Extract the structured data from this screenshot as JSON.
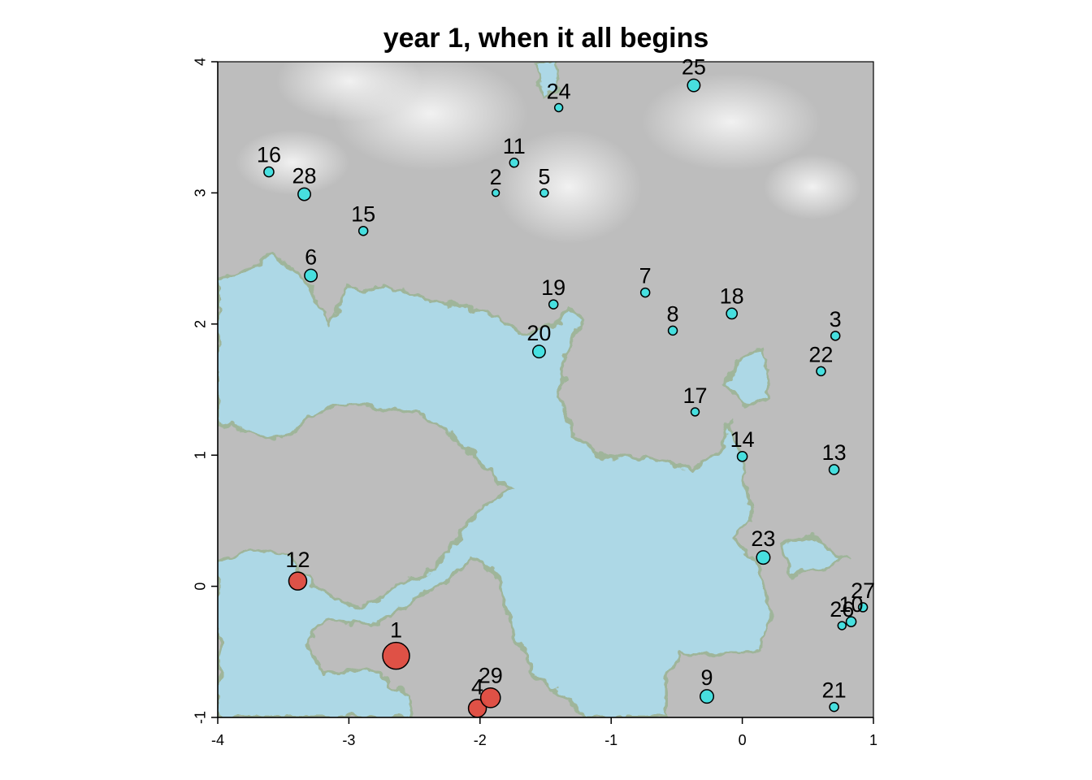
{
  "chart_data": {
    "type": "scatter",
    "title": "year 1, when it all begins",
    "xlabel": "",
    "ylabel": "",
    "xlim": [
      -4,
      1
    ],
    "ylim": [
      -1,
      4
    ],
    "x_ticks": [
      "-4",
      "-3",
      "-2",
      "-1",
      "0",
      "1"
    ],
    "y_ticks": [
      "-1",
      "0",
      "1",
      "2",
      "3",
      "4"
    ],
    "background": {
      "description": "terrain raster: gray elevation with water areas",
      "land_color": "#bdbdbd",
      "highland_color": "#e8e8e8",
      "water_color": "#add8e6",
      "shore_color": "#9fb59a"
    },
    "series": [
      {
        "color": "#e04b3f",
        "points": [
          {
            "label": "1",
            "x": -2.64,
            "y": -0.53,
            "size": 3
          },
          {
            "label": "4",
            "x": -2.02,
            "y": -0.93,
            "size": 2
          },
          {
            "label": "29",
            "x": -1.92,
            "y": -0.85,
            "size": 2.2
          },
          {
            "label": "12",
            "x": -3.39,
            "y": 0.04,
            "size": 2
          }
        ]
      },
      {
        "color": "#40e0e0",
        "points": [
          {
            "label": "2",
            "x": -1.88,
            "y": 3.0,
            "size": 0.8
          },
          {
            "label": "3",
            "x": 0.71,
            "y": 1.91,
            "size": 1
          },
          {
            "label": "5",
            "x": -1.51,
            "y": 3.0,
            "size": 0.9
          },
          {
            "label": "6",
            "x": -3.29,
            "y": 2.37,
            "size": 1.4
          },
          {
            "label": "7",
            "x": -0.74,
            "y": 2.24,
            "size": 1
          },
          {
            "label": "8",
            "x": -0.53,
            "y": 1.95,
            "size": 1
          },
          {
            "label": "9",
            "x": -0.27,
            "y": -0.84,
            "size": 1.5
          },
          {
            "label": "10",
            "x": 0.83,
            "y": -0.27,
            "size": 1.1
          },
          {
            "label": "11",
            "x": -1.74,
            "y": 3.23,
            "size": 1
          },
          {
            "label": "13",
            "x": 0.7,
            "y": 0.89,
            "size": 1.1
          },
          {
            "label": "14",
            "x": 0.0,
            "y": 0.99,
            "size": 1.1
          },
          {
            "label": "15",
            "x": -2.89,
            "y": 2.71,
            "size": 1
          },
          {
            "label": "16",
            "x": -3.61,
            "y": 3.16,
            "size": 1.1
          },
          {
            "label": "17",
            "x": -0.36,
            "y": 1.33,
            "size": 0.9
          },
          {
            "label": "18",
            "x": -0.08,
            "y": 2.08,
            "size": 1.2
          },
          {
            "label": "19",
            "x": -1.44,
            "y": 2.15,
            "size": 1
          },
          {
            "label": "20",
            "x": -1.55,
            "y": 1.79,
            "size": 1.4
          },
          {
            "label": "21",
            "x": 0.7,
            "y": -0.92,
            "size": 1
          },
          {
            "label": "22",
            "x": 0.6,
            "y": 1.64,
            "size": 1
          },
          {
            "label": "23",
            "x": 0.16,
            "y": 0.22,
            "size": 1.5
          },
          {
            "label": "24",
            "x": -1.4,
            "y": 3.65,
            "size": 0.9
          },
          {
            "label": "25",
            "x": -0.37,
            "y": 3.82,
            "size": 1.4
          },
          {
            "label": "26",
            "x": 0.76,
            "y": -0.3,
            "size": 0.9
          },
          {
            "label": "27",
            "x": 0.92,
            "y": -0.16,
            "size": 1
          },
          {
            "label": "28",
            "x": -3.34,
            "y": 2.99,
            "size": 1.4
          }
        ]
      }
    ]
  }
}
